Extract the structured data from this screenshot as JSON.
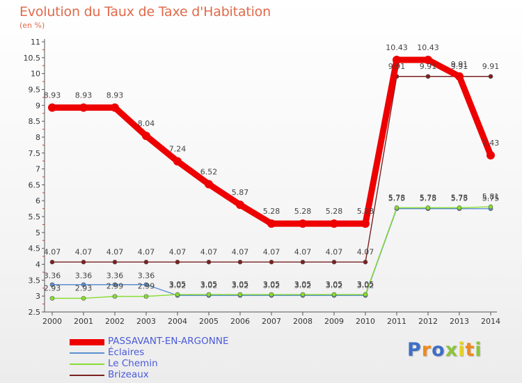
{
  "chart_data": {
    "type": "line",
    "title": "Evolution du Taux de Taxe d'Habitation",
    "subtitle": "(en %)",
    "x": [
      2000,
      2001,
      2002,
      2003,
      2004,
      2005,
      2006,
      2007,
      2008,
      2009,
      2010,
      2011,
      2012,
      2013,
      2014
    ],
    "ylim": [
      2.5,
      11
    ],
    "yticks": [
      "2.5",
      "3",
      "3.5",
      "4",
      "4.5",
      "5",
      "5.5",
      "6",
      "6.5",
      "7",
      "7.5",
      "8",
      "8.5",
      "9",
      "9.5",
      "10",
      "10.5",
      "11"
    ],
    "grid": false,
    "legend_position": "bottom-left",
    "series": [
      {
        "name": "PASSAVANT-EN-ARGONNE",
        "color": "#ee0000",
        "values": [
          8.93,
          8.93,
          8.93,
          8.04,
          7.24,
          6.52,
          5.87,
          5.28,
          5.28,
          5.28,
          5.28,
          10.43,
          10.43,
          9.91,
          7.43
        ],
        "labels": [
          "8.93",
          "8.93",
          "8.93",
          "8.04",
          "7.24",
          "6.52",
          "5.87",
          "5.28",
          "5.28",
          "5.28",
          "5.28",
          "10.43",
          "10.43",
          "9.91",
          "7.43"
        ]
      },
      {
        "name": "Éclaires",
        "color": "#5b8fcf",
        "values": [
          3.36,
          3.36,
          3.36,
          3.36,
          3.02,
          3.02,
          3.02,
          3.02,
          3.02,
          3.02,
          3.02,
          5.75,
          5.75,
          5.75,
          5.75
        ],
        "labels": [
          "3.36",
          "3.36",
          "3.36",
          "3.36",
          "3.02",
          "3.02",
          "3.02",
          "3.02",
          "3.02",
          "3.02",
          "3.02",
          "5.75",
          "5.75",
          "5.75",
          "5.75"
        ]
      },
      {
        "name": "Le Chemin",
        "color": "#88dd33",
        "values": [
          2.93,
          2.93,
          2.99,
          2.99,
          3.05,
          3.05,
          3.05,
          3.05,
          3.05,
          3.05,
          3.05,
          5.78,
          5.78,
          5.78,
          5.81
        ],
        "labels": [
          "2.93",
          "2.93",
          "2.99",
          "2.99",
          "3.05",
          "3.05",
          "3.05",
          "3.05",
          "3.05",
          "3.05",
          "3.05",
          "5.78",
          "5.78",
          "5.78",
          "5.81"
        ]
      },
      {
        "name": "Brizeaux",
        "color": "#7a2020",
        "values": [
          4.07,
          4.07,
          4.07,
          4.07,
          4.07,
          4.07,
          4.07,
          4.07,
          4.07,
          4.07,
          4.07,
          9.91,
          9.91,
          9.91,
          9.91
        ],
        "labels": [
          "4.07",
          "4.07",
          "4.07",
          "4.07",
          "4.07",
          "4.07",
          "4.07",
          "4.07",
          "4.07",
          "4.07",
          "4.07",
          "9.91",
          "9.91",
          "9.91",
          "9.91"
        ]
      }
    ]
  },
  "logo": {
    "letters": [
      "P",
      "r",
      "o",
      "x",
      "i",
      "t",
      "i"
    ],
    "colors": [
      "#3f6fc6",
      "#f08a1c",
      "#3f6fc6",
      "#8dc43c",
      "#e8d21c",
      "#f08a1c",
      "#8dc43c"
    ]
  }
}
